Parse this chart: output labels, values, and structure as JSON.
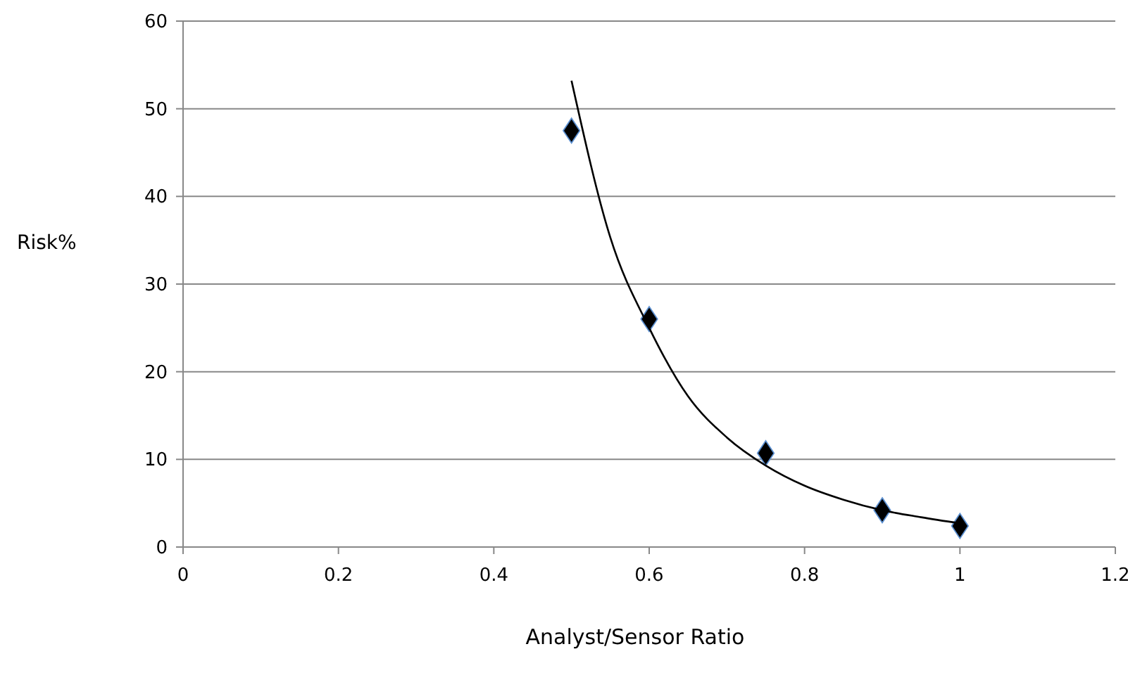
{
  "chart_data": {
    "type": "scatter",
    "xlabel": "Analyst/Sensor Ratio",
    "ylabel": "Risk%",
    "xlim": [
      0,
      1.2
    ],
    "xticks": [
      0,
      0.2,
      0.4,
      0.6,
      0.8,
      1,
      1.2
    ],
    "ylim": [
      0,
      60
    ],
    "yticks": [
      0,
      10,
      20,
      30,
      40,
      50,
      60
    ],
    "grid": "y",
    "marker": "diamond",
    "series": [
      {
        "color": "#000000",
        "x": [
          0.5,
          0.6,
          0.75,
          0.9,
          1
        ],
        "values": [
          47.5,
          26,
          10.7,
          4.2,
          2.4
        ]
      },
      {
        "type": "line",
        "color": "#000000",
        "marker": "none",
        "x": [
          0.5,
          0.55,
          0.6,
          0.65,
          0.7,
          0.75,
          0.8,
          0.85,
          0.9,
          0.95,
          1
        ],
        "values": [
          53.2,
          35.3,
          25,
          17.2,
          12.5,
          9.3,
          7,
          5.4,
          4.2,
          3.4,
          2.7
        ]
      }
    ]
  }
}
